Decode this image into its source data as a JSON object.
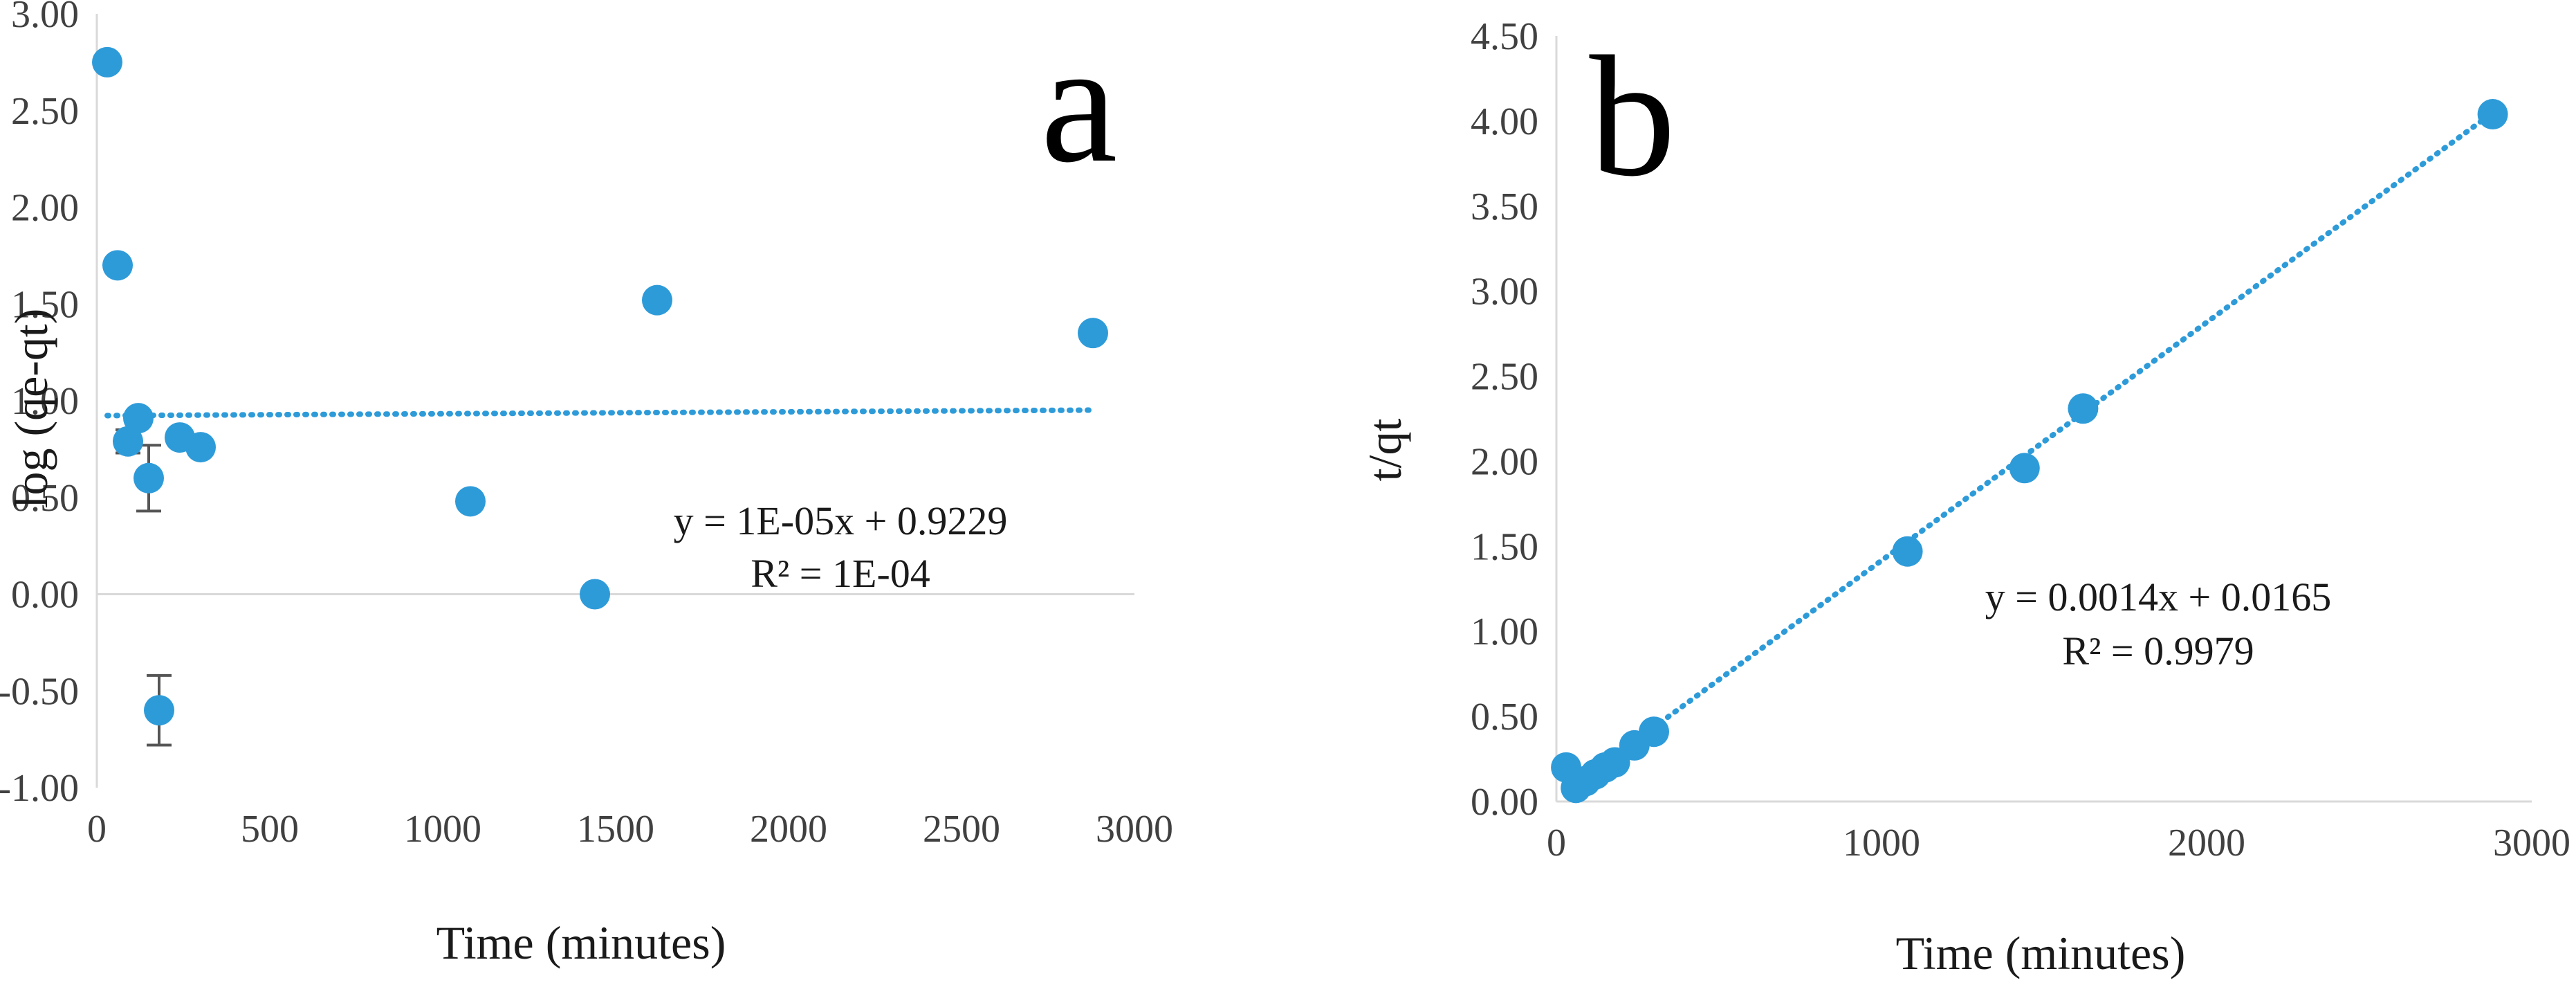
{
  "chart_data": [
    {
      "type": "scatter",
      "panel_label": "a",
      "xlabel": "Time (minutes)",
      "ylabel": "log (qe-qt)",
      "xlim": [
        0,
        3000
      ],
      "ylim": [
        -1.0,
        3.0
      ],
      "xticks": [
        0,
        500,
        1000,
        1500,
        2000,
        2500,
        3000
      ],
      "xtick_labels": [
        "0",
        "500",
        "1000",
        "1500",
        "2000",
        "2500",
        "3000"
      ],
      "yticks": [
        -1.0,
        -0.5,
        0.0,
        0.5,
        1.0,
        1.5,
        2.0,
        2.5,
        3.0
      ],
      "ytick_labels": [
        "-1.00",
        "-0.50",
        "0.00",
        "0.50",
        "1.00",
        "1.50",
        "2.00",
        "2.50",
        "3.00"
      ],
      "grid": false,
      "points": [
        {
          "x": 30,
          "y": 2.75
        },
        {
          "x": 60,
          "y": 1.7
        },
        {
          "x": 90,
          "y": 0.79,
          "err": 0.06
        },
        {
          "x": 120,
          "y": 0.91
        },
        {
          "x": 150,
          "y": 0.6,
          "err": 0.17
        },
        {
          "x": 180,
          "y": -0.6,
          "err": 0.18
        },
        {
          "x": 240,
          "y": 0.81
        },
        {
          "x": 300,
          "y": 0.76
        },
        {
          "x": 1080,
          "y": 0.48
        },
        {
          "x": 1440,
          "y": 0.0
        },
        {
          "x": 1620,
          "y": 1.52
        },
        {
          "x": 2880,
          "y": 1.35
        }
      ],
      "trendline": {
        "slope": 1e-05,
        "intercept": 0.9229,
        "x_range": [
          30,
          2880
        ],
        "style": "dotted"
      },
      "equation": "y = 1E-05x + 0.9229",
      "r2_text": "R² = 1E-04",
      "color": "#2E9BD9"
    },
    {
      "type": "scatter",
      "panel_label": "b",
      "xlabel": "Time (minutes)",
      "ylabel": "t/qt",
      "xlim": [
        0,
        3000
      ],
      "ylim": [
        0.0,
        4.5
      ],
      "xticks": [
        0,
        1000,
        2000,
        3000
      ],
      "xtick_labels": [
        "0",
        "1000",
        "2000",
        "3000"
      ],
      "yticks": [
        0.0,
        0.5,
        1.0,
        1.5,
        2.0,
        2.5,
        3.0,
        3.5,
        4.0,
        4.5
      ],
      "ytick_labels": [
        "0.00",
        "0.50",
        "1.00",
        "1.50",
        "2.00",
        "2.50",
        "3.00",
        "3.50",
        "4.00",
        "4.50"
      ],
      "grid": false,
      "points": [
        {
          "x": 30,
          "y": 0.2
        },
        {
          "x": 60,
          "y": 0.08
        },
        {
          "x": 90,
          "y": 0.12
        },
        {
          "x": 120,
          "y": 0.16
        },
        {
          "x": 150,
          "y": 0.2
        },
        {
          "x": 180,
          "y": 0.23
        },
        {
          "x": 240,
          "y": 0.33
        },
        {
          "x": 300,
          "y": 0.41
        },
        {
          "x": 1080,
          "y": 1.47
        },
        {
          "x": 1440,
          "y": 1.96
        },
        {
          "x": 1620,
          "y": 2.31
        },
        {
          "x": 2880,
          "y": 4.04
        }
      ],
      "trendline": {
        "slope": 0.0014,
        "intercept": 0.0165,
        "x_range": [
          30,
          2880
        ],
        "style": "dotted"
      },
      "equation": "y = 0.0014x + 0.0165",
      "r2_text": "R² = 0.9979",
      "color": "#2E9BD9"
    }
  ]
}
